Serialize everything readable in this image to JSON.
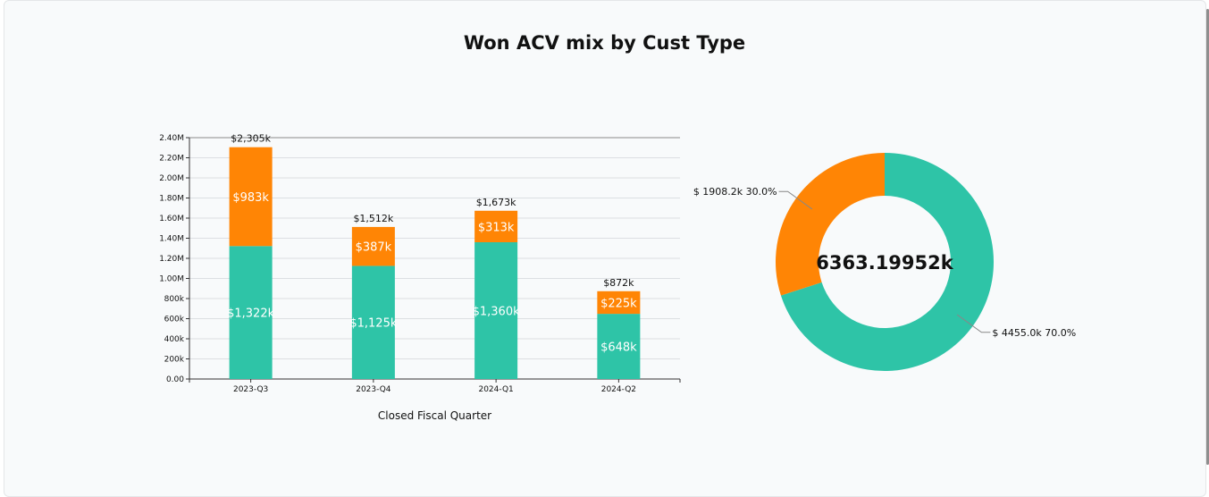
{
  "page": {
    "title": "Won ACV mix by Cust Type"
  },
  "chart_data": [
    {
      "type": "bar",
      "stacked": true,
      "categories": [
        "2023-Q3",
        "2023-Q4",
        "2024-Q1",
        "2024-Q2"
      ],
      "series": [
        {
          "values": [
            1322000,
            1125000,
            1360000,
            648000
          ],
          "labels": [
            "$1,322k",
            "$1,125k",
            "$1,360k",
            "$648k"
          ],
          "color": "#2ec4a7"
        },
        {
          "values": [
            983000,
            387000,
            313000,
            225000
          ],
          "labels": [
            "$983k",
            "$387k",
            "$313k",
            "$225k"
          ],
          "color": "#ff8505"
        }
      ],
      "totals": [
        "$2,305k",
        "$1,512k",
        "$1,673k",
        "$872k"
      ],
      "xlabel": "Closed Fiscal Quarter",
      "ylim": [
        0,
        2400000
      ],
      "yticks": [
        0,
        200000,
        400000,
        600000,
        800000,
        1000000,
        1200000,
        1400000,
        1600000,
        1800000,
        2000000,
        2200000,
        2400000
      ],
      "ytick_labels": [
        "0.00",
        "200k",
        "400k",
        "600k",
        "800k",
        "1.00M",
        "1.20M",
        "1.40M",
        "1.60M",
        "1.80M",
        "2.00M",
        "2.20M",
        "2.40M"
      ],
      "grid": true
    },
    {
      "type": "pie",
      "donut": true,
      "center_label": "6363.19952k",
      "slices": [
        {
          "value": 4455.0,
          "percent": 70.0,
          "label": "$ 4455.0k 70.0%",
          "color": "#2ec4a7"
        },
        {
          "value": 1908.2,
          "percent": 30.0,
          "label": "$ 1908.2k 30.0%",
          "color": "#ff8505"
        }
      ]
    }
  ]
}
